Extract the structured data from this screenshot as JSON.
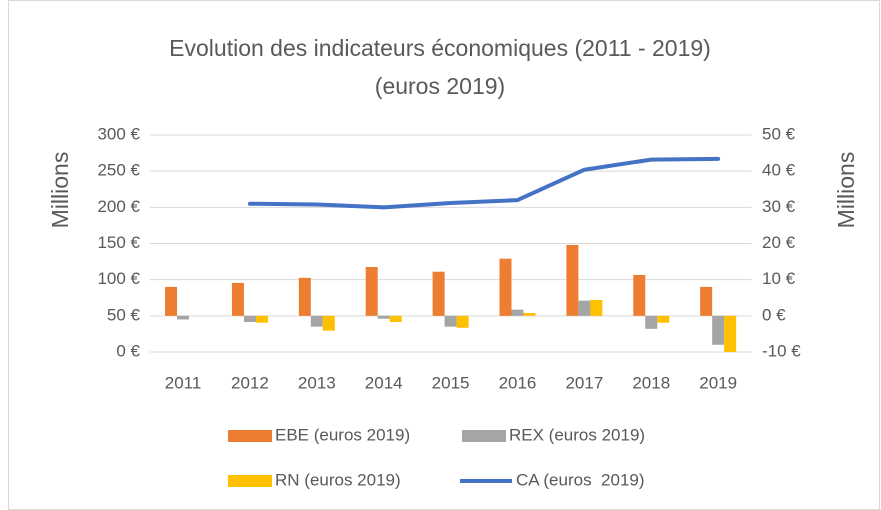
{
  "chart_data": {
    "type": "bar",
    "title": "Evolution des indicateurs économiques (2011 - 2019)",
    "subtitle": "(euros 2019)",
    "y_label": "Millions",
    "y2_label": "Millions",
    "categories": [
      "2011",
      "2012",
      "2013",
      "2014",
      "2015",
      "2016",
      "2017",
      "2018",
      "2019"
    ],
    "series": [
      {
        "name": "EBE (euros 2019)",
        "color": "#ED7D31",
        "axis": "y2",
        "values": [
          8.0,
          9.1,
          10.5,
          13.5,
          12.2,
          15.8,
          19.6,
          11.3,
          8.0
        ]
      },
      {
        "name": "REX (euros 2019)",
        "color": "#A5A5A5",
        "axis": "y2",
        "values": [
          -1.0,
          -1.7,
          -3.0,
          -0.8,
          -3.0,
          1.7,
          4.2,
          -3.6,
          -8.0
        ]
      },
      {
        "name": "RN (euros 2019)",
        "color": "#FFC000",
        "axis": "y2",
        "values": [
          0,
          -1.9,
          -4.1,
          -1.7,
          -3.3,
          0.8,
          4.4,
          -1.9,
          -10
        ]
      },
      {
        "name": "CA (euros  2019)",
        "color": "#4472C4",
        "type": "line",
        "values": [
          null,
          205,
          204,
          200,
          206,
          210,
          252,
          266,
          267
        ]
      }
    ],
    "ylim": [
      0,
      300
    ],
    "yticks": [
      {
        "value": 0,
        "label": "0 €"
      },
      {
        "value": 50,
        "label": "50 €"
      },
      {
        "value": 100,
        "label": "100 €"
      },
      {
        "value": 150,
        "label": "150 €"
      },
      {
        "value": 200,
        "label": "200 €"
      },
      {
        "value": 250,
        "label": "250 €"
      },
      {
        "value": 300,
        "label": "300 €"
      }
    ],
    "y2lim": [
      -10,
      50
    ],
    "y2ticks": [
      {
        "value": -10,
        "label": "-10 €"
      },
      {
        "value": 0,
        "label": "0 €"
      },
      {
        "value": 10,
        "label": "10 €"
      },
      {
        "value": 20,
        "label": "20 €"
      },
      {
        "value": 30,
        "label": "30 €"
      },
      {
        "value": 40,
        "label": "40 €"
      },
      {
        "value": 50,
        "label": "50 €"
      }
    ],
    "grid": true,
    "legend": "bottom"
  }
}
